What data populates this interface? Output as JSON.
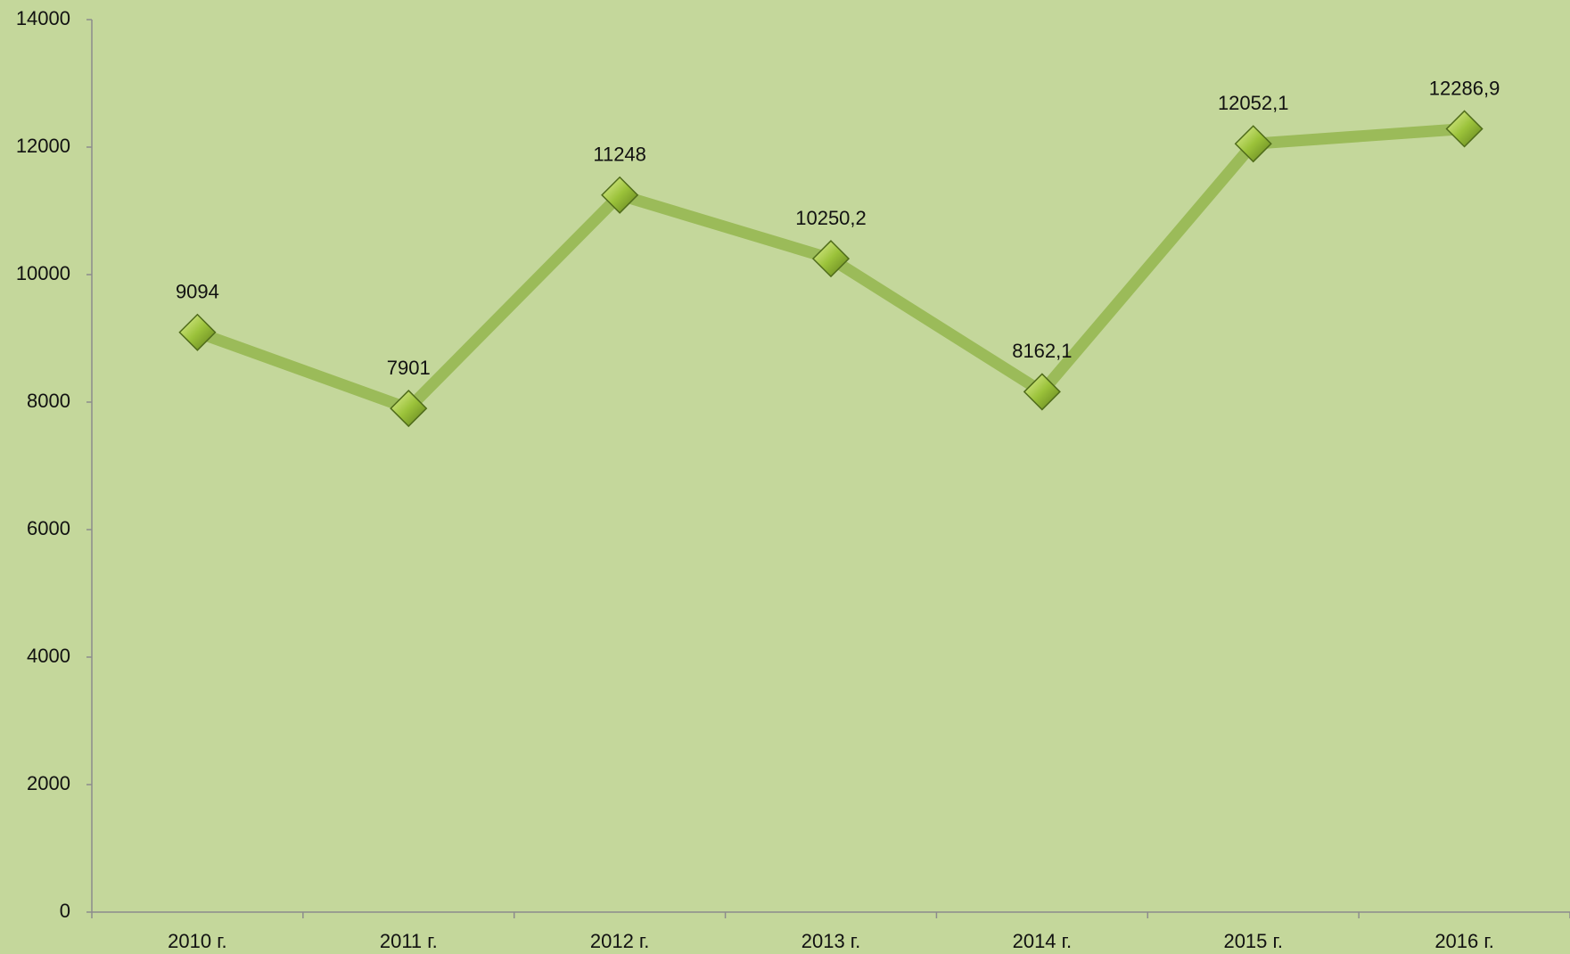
{
  "chart_data": {
    "type": "line",
    "categories": [
      "2010 г.",
      "2011 г.",
      "2012 г.",
      "2013 г.",
      "2014 г.",
      "2015 г.",
      "2016 г."
    ],
    "series": [
      {
        "color": "#9bbb59",
        "values": [
          9094,
          7901,
          11248,
          10250.2,
          8162.1,
          12052.1,
          12286.9
        ],
        "value_labels": [
          "9094",
          "7901",
          "11248",
          "10250,2",
          "8162,1",
          "12052,1",
          "12286,9"
        ]
      }
    ],
    "ylim": [
      0,
      14000
    ],
    "yticks": [
      0,
      2000,
      4000,
      6000,
      8000,
      10000,
      12000,
      14000
    ],
    "grid": false
  }
}
